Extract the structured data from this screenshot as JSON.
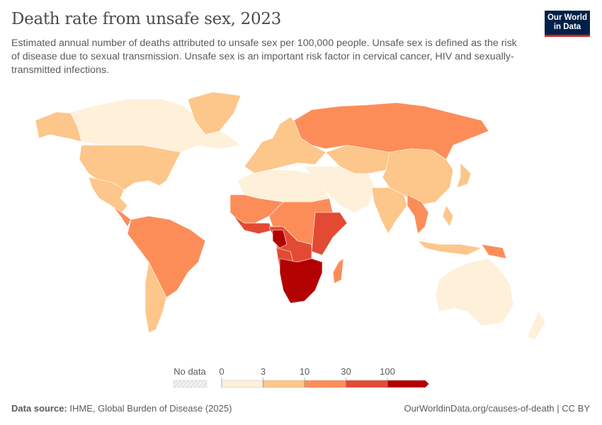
{
  "header": {
    "title": "Death rate from unsafe sex, 2023",
    "subtitle": "Estimated annual number of deaths attributed to unsafe sex per 100,000 people. Unsafe sex is defined as the risk of disease due to sexual transmission. Unsafe sex is an important risk factor in cervical cancer, HIV and sexually-transmitted infections.",
    "logo_line1": "Our World",
    "logo_line2": "in Data"
  },
  "chart_data": {
    "type": "choropleth-map",
    "year": 2023,
    "legend": {
      "no_data_label": "No data",
      "ticks": [
        "0",
        "3",
        "10",
        "30",
        "100"
      ],
      "bins": [
        {
          "range": "0-3",
          "color": "#fef0d9"
        },
        {
          "range": "3-10",
          "color": "#fdc68a"
        },
        {
          "range": "10-30",
          "color": "#fc8d59"
        },
        {
          "range": "30-100",
          "color": "#e34a33"
        },
        {
          "range": ">100",
          "color": "#b30000"
        }
      ],
      "no_data_color": "#e8e8e8",
      "placement": "bottom"
    },
    "regions": [
      {
        "name": "Canada",
        "bin": "0-3"
      },
      {
        "name": "Alaska",
        "bin": "3-10"
      },
      {
        "name": "Greenland",
        "bin": "3-10"
      },
      {
        "name": "United States",
        "bin": "3-10"
      },
      {
        "name": "Mexico",
        "bin": "3-10"
      },
      {
        "name": "Central America",
        "bin": "10-30"
      },
      {
        "name": "Brazil and northern South America",
        "bin": "10-30"
      },
      {
        "name": "Southern Cone",
        "bin": "3-10"
      },
      {
        "name": "Europe",
        "bin": "3-10"
      },
      {
        "name": "Russia",
        "bin": "10-30"
      },
      {
        "name": "Central Asia",
        "bin": "3-10"
      },
      {
        "name": "China",
        "bin": "3-10"
      },
      {
        "name": "Middle East",
        "bin": "0-3"
      },
      {
        "name": "India",
        "bin": "3-10"
      },
      {
        "name": "Southeast Asia mainland",
        "bin": "10-30"
      },
      {
        "name": "Indonesia",
        "bin": "3-10"
      },
      {
        "name": "Philippines",
        "bin": "3-10"
      },
      {
        "name": "Papua New Guinea",
        "bin": "10-30"
      },
      {
        "name": "Japan",
        "bin": "3-10"
      },
      {
        "name": "Australia",
        "bin": "0-3"
      },
      {
        "name": "New Zealand",
        "bin": "0-3"
      },
      {
        "name": "North Africa",
        "bin": "0-3"
      },
      {
        "name": "Sahel and West Africa",
        "bin": "10-30"
      },
      {
        "name": "West African coast",
        "bin": "30-100"
      },
      {
        "name": "Central and East Africa",
        "bin": "10-30"
      },
      {
        "name": "East Africa",
        "bin": "30-100"
      },
      {
        "name": "Central Africa",
        "bin": "30-100"
      },
      {
        "name": "Gabon and Congo",
        "bin": ">100"
      },
      {
        "name": "Angola",
        "bin": "30-100"
      },
      {
        "name": "Southern Africa",
        "bin": ">100"
      },
      {
        "name": "Madagascar",
        "bin": "10-30"
      }
    ]
  },
  "footer": {
    "source_label": "Data source:",
    "source_text": "IHME, Global Burden of Disease (2025)",
    "url_text": "OurWorldinData.org/causes-of-death | CC BY"
  }
}
